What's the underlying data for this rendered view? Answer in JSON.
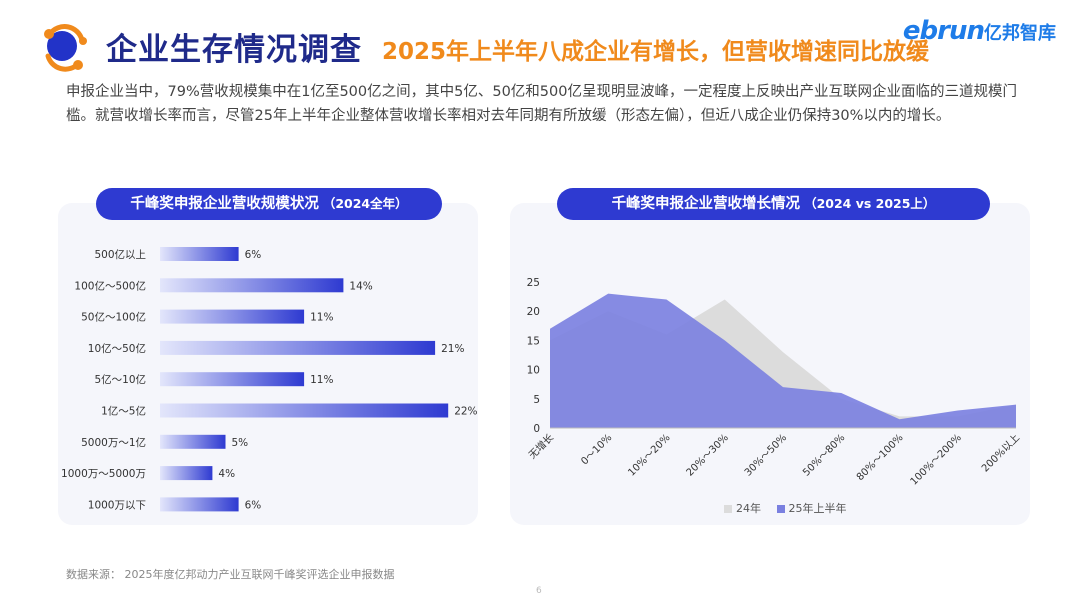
{
  "header": {
    "title": "企业生存情况调查",
    "subtitle": "2025年上半年八成企业有增长，但营收增速同比放缓",
    "brand_en": "ebrun",
    "brand_cn": "亿邦智库"
  },
  "intro": "申报企业当中，79%营收规模集中在1亿至500亿之间，其中5亿、50亿和500亿呈现明显波峰，一定程度上反映出产业互联网企业面临的三道规模门槛。就营收增长率而言，尽管25年上半年企业整体营收增长率相对去年同期有所放缓（形态左偏），但近八成企业仍保持30%以内的增长。",
  "left_panel": {
    "title": "千峰奖申报企业营收规模状况",
    "title_year": "（2024全年）"
  },
  "right_panel": {
    "title": "千峰奖申报企业营收增长情况",
    "title_year": "（2024 vs 2025上）"
  },
  "source": "数据来源： 2025年度亿邦动力产业互联网千峰奖评选企业申报数据",
  "page_number": "6",
  "colors": {
    "primary": "#2e3ad1",
    "orange": "#f08a1c",
    "series_24": "#dcdcdc",
    "series_25": "#7a80e0"
  },
  "chart_data": [
    {
      "type": "bar",
      "orientation": "horizontal",
      "categories": [
        "500亿以上",
        "100亿～500亿",
        "50亿～100亿",
        "10亿～50亿",
        "5亿～10亿",
        "1亿～5亿",
        "5000万～1亿",
        "1000万～5000万",
        "1000万以下"
      ],
      "values": [
        6,
        14,
        11,
        21,
        11,
        22,
        5,
        4,
        6
      ],
      "value_labels": [
        "6%",
        "14%",
        "11%",
        "21%",
        "11%",
        "22%",
        "5%",
        "4%",
        "6%"
      ],
      "unit": "%"
    },
    {
      "type": "area",
      "categories": [
        "无增长",
        "0～10%",
        "10%～20%",
        "20%～30%",
        "30%～50%",
        "50%～80%",
        "80%～100%",
        "100%～200%",
        "200%以上"
      ],
      "series": [
        {
          "name": "24年",
          "values": [
            15,
            20,
            16,
            22,
            13,
            5,
            2,
            2,
            4
          ]
        },
        {
          "name": "25年上半年",
          "values": [
            17,
            23,
            22,
            15,
            7,
            6,
            1.5,
            3,
            4
          ]
        }
      ],
      "ylim": [
        0,
        25
      ],
      "yticks": [
        0,
        5,
        10,
        15,
        20,
        25
      ],
      "legend": "bottom"
    }
  ]
}
